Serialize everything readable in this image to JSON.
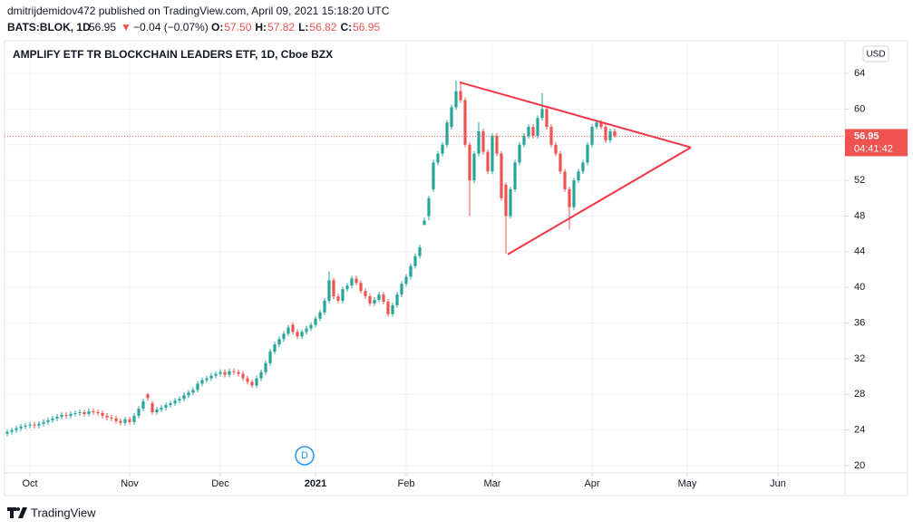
{
  "header": {
    "publisher": "dmitrijdemidov472 published on TradingView.com, April 09, 2021 15:18:20 UTC",
    "symbol": "BATS:BLOK, 1D",
    "last": "56.95",
    "arrow": "▼",
    "change": "−0.04 (−0.07%)",
    "ohlc": [
      {
        "label": "O:",
        "value": "57.50"
      },
      {
        "label": "H:",
        "value": "57.82"
      },
      {
        "label": "L:",
        "value": "56.82"
      },
      {
        "label": "C:",
        "value": "56.95"
      }
    ]
  },
  "footer": {
    "brand": "TradingView"
  },
  "chart_data": {
    "type": "candlestick",
    "title": "AMPLIFY ETF TR BLOCKCHAIN LEADERS ETF, 1D, Cboe BZX",
    "currency": "USD",
    "countdown": "04:41:42",
    "up_color": "#26a69a",
    "down_color": "#ef5350",
    "grid": true,
    "xlim": [
      -0.6,
      184.8
    ],
    "xticks": [
      {
        "value": 5,
        "label": "Oct"
      },
      {
        "value": 27,
        "label": "Nov"
      },
      {
        "value": 47,
        "label": "Dec"
      },
      {
        "value": 68,
        "label": "2021"
      },
      {
        "value": 88,
        "label": "Feb"
      },
      {
        "value": 107,
        "label": "Mar"
      },
      {
        "value": 129,
        "label": "Apr"
      },
      {
        "value": 150,
        "label": "May"
      },
      {
        "value": 170,
        "label": "Jun"
      }
    ],
    "ylim": [
      19.19,
      67.66
    ],
    "yticks": [
      20,
      24,
      28,
      32,
      36,
      40,
      44,
      48,
      52,
      56,
      60,
      64
    ],
    "open": [
      23.6,
      23.8,
      24.0,
      24.2,
      24.4,
      24.5,
      24.6,
      24.5,
      24.7,
      24.9,
      25.1,
      25.3,
      25.5,
      25.7,
      25.6,
      25.8,
      25.9,
      26.0,
      25.8,
      26.1,
      26.0,
      25.9,
      25.6,
      25.4,
      25.3,
      25.0,
      24.8,
      25.2,
      24.9,
      25.6,
      26.4,
      28.0,
      27.0,
      26.0,
      26.3,
      26.5,
      26.8,
      27.0,
      27.3,
      27.5,
      27.9,
      28.2,
      28.5,
      29.2,
      29.6,
      29.8,
      30.1,
      30.3,
      30.5,
      30.2,
      30.6,
      30.5,
      30.3,
      29.8,
      29.4,
      29.0,
      29.8,
      30.5,
      31.5,
      32.8,
      33.6,
      34.2,
      34.8,
      35.8,
      35.0,
      34.5,
      35.0,
      35.4,
      35.8,
      36.5,
      37.2,
      38.5,
      40.8,
      39.0,
      38.5,
      39.8,
      40.2,
      41.0,
      40.5,
      39.6,
      39.0,
      38.2,
      38.6,
      39.2,
      38.4,
      37.0,
      38.0,
      39.2,
      40.4,
      41.2,
      42.4,
      43.5,
      47.0,
      48.0,
      51.0,
      54.0,
      55.0,
      56.0,
      58.0,
      60.2,
      62.0,
      61.0,
      56.0,
      52.0,
      55.0,
      57.5,
      55.2,
      53.0,
      57.0,
      55.0,
      51.5,
      48.0,
      51.0,
      54.0,
      56.0,
      57.0,
      58.0,
      57.0,
      59.0,
      60.0,
      58.0,
      56.0,
      55.0,
      53.0,
      51.0,
      49.0,
      52.0,
      53.0,
      54.0,
      56.0,
      58.0,
      58.5,
      58.0,
      56.5,
      57.5
    ],
    "high": [
      24.1,
      24.3,
      24.5,
      24.7,
      24.8,
      24.9,
      24.9,
      25.0,
      25.2,
      25.4,
      25.6,
      25.8,
      26.0,
      26.0,
      26.1,
      26.2,
      26.3,
      26.3,
      26.4,
      26.4,
      26.3,
      26.2,
      25.9,
      25.7,
      25.6,
      25.3,
      25.5,
      25.5,
      25.9,
      26.7,
      27.5,
      28.2,
      27.3,
      26.6,
      26.8,
      27.1,
      27.3,
      27.6,
      27.8,
      28.2,
      28.5,
      28.8,
      29.5,
      29.9,
      30.1,
      30.4,
      30.6,
      30.8,
      30.8,
      30.9,
      30.9,
      30.8,
      30.6,
      30.1,
      29.7,
      30.1,
      30.8,
      31.8,
      33.1,
      33.9,
      34.5,
      35.1,
      35.8,
      36.1,
      35.3,
      35.3,
      35.7,
      36.1,
      36.8,
      37.5,
      38.8,
      41.8,
      41.1,
      39.3,
      40.1,
      40.5,
      41.3,
      41.3,
      40.8,
      39.9,
      39.3,
      38.9,
      39.5,
      39.5,
      38.7,
      38.3,
      39.5,
      40.7,
      41.5,
      42.7,
      43.8,
      44.8,
      47.8,
      50.3,
      54.3,
      55.3,
      56.3,
      58.8,
      60.5,
      63.2,
      63.0,
      61.3,
      56.3,
      55.3,
      58.5,
      57.8,
      55.5,
      57.3,
      57.3,
      55.3,
      51.8,
      51.3,
      54.3,
      56.3,
      57.3,
      58.3,
      58.3,
      59.3,
      61.8,
      60.3,
      58.3,
      56.3,
      55.3,
      53.3,
      51.3,
      52.3,
      53.3,
      54.3,
      56.3,
      58.3,
      58.8,
      58.8,
      58.3,
      57.8,
      57.82
    ],
    "low": [
      23.3,
      23.5,
      23.7,
      23.9,
      24.1,
      24.2,
      24.2,
      24.2,
      24.4,
      24.6,
      24.8,
      25.0,
      25.2,
      25.3,
      25.3,
      25.5,
      25.6,
      25.5,
      25.5,
      25.7,
      25.6,
      25.3,
      25.1,
      25.0,
      24.7,
      24.5,
      24.5,
      24.6,
      24.6,
      25.3,
      26.1,
      27.3,
      25.7,
      25.7,
      26.0,
      26.2,
      26.5,
      26.7,
      27.0,
      27.2,
      27.6,
      27.9,
      28.2,
      28.9,
      29.3,
      29.5,
      29.8,
      30.0,
      29.9,
      29.9,
      30.2,
      30.0,
      29.5,
      29.1,
      28.7,
      28.7,
      29.5,
      30.2,
      31.2,
      32.5,
      33.3,
      33.9,
      34.5,
      34.7,
      34.2,
      34.2,
      34.7,
      35.1,
      35.5,
      36.2,
      36.9,
      38.2,
      38.7,
      38.2,
      38.2,
      39.5,
      39.9,
      40.2,
      39.3,
      38.7,
      37.9,
      37.9,
      38.3,
      38.1,
      36.7,
      36.7,
      37.7,
      38.9,
      40.1,
      40.9,
      42.1,
      43.2,
      47.0,
      47.5,
      50.7,
      53.7,
      54.7,
      55.7,
      57.7,
      59.9,
      60.7,
      55.7,
      48.0,
      51.7,
      54.7,
      54.9,
      52.7,
      52.7,
      54.7,
      49.7,
      43.8,
      47.7,
      50.7,
      53.7,
      55.7,
      56.7,
      56.7,
      56.7,
      58.7,
      57.7,
      55.7,
      54.7,
      52.7,
      50.7,
      46.5,
      48.7,
      51.7,
      52.7,
      53.7,
      55.7,
      57.7,
      57.7,
      56.2,
      56.2,
      56.82
    ],
    "close": [
      23.8,
      24.0,
      24.2,
      24.4,
      24.5,
      24.6,
      24.5,
      24.7,
      24.9,
      25.1,
      25.3,
      25.5,
      25.7,
      25.6,
      25.8,
      25.9,
      26.0,
      25.8,
      26.1,
      26.0,
      25.9,
      25.6,
      25.4,
      25.3,
      25.0,
      24.8,
      25.2,
      24.9,
      25.6,
      26.4,
      27.2,
      27.6,
      26.0,
      26.3,
      26.5,
      26.8,
      27.0,
      27.3,
      27.5,
      27.9,
      28.2,
      28.5,
      29.2,
      29.6,
      29.8,
      30.1,
      30.3,
      30.5,
      30.2,
      30.6,
      30.5,
      30.3,
      29.8,
      29.4,
      29.0,
      29.8,
      30.5,
      31.5,
      32.8,
      33.6,
      34.2,
      34.8,
      35.5,
      35.0,
      34.5,
      35.0,
      35.4,
      35.8,
      36.5,
      37.2,
      38.5,
      40.8,
      39.0,
      38.5,
      39.8,
      40.2,
      41.0,
      40.5,
      39.6,
      39.0,
      38.2,
      38.6,
      39.2,
      38.4,
      37.0,
      38.0,
      39.2,
      40.4,
      41.2,
      42.4,
      43.5,
      44.5,
      47.5,
      50.0,
      54.0,
      55.0,
      56.0,
      58.5,
      60.2,
      62.0,
      61.0,
      56.0,
      52.0,
      55.0,
      57.5,
      55.2,
      53.0,
      57.0,
      55.0,
      50.0,
      48.0,
      51.0,
      54.0,
      56.0,
      57.0,
      58.0,
      57.0,
      59.0,
      60.0,
      58.0,
      56.0,
      55.0,
      53.0,
      51.0,
      49.0,
      52.0,
      53.0,
      54.0,
      56.0,
      58.0,
      58.5,
      58.0,
      56.5,
      57.5,
      56.95
    ],
    "trendlines": [
      {
        "color": "#f23645",
        "points": [
          [
            99.8,
            63.0
          ],
          [
            150.8,
            55.7
          ]
        ]
      },
      {
        "color": "#f23645",
        "points": [
          [
            110.4,
            43.7
          ],
          [
            150.8,
            55.7
          ]
        ]
      }
    ],
    "dividends": [
      {
        "x": 65.6,
        "label": "D"
      }
    ]
  }
}
